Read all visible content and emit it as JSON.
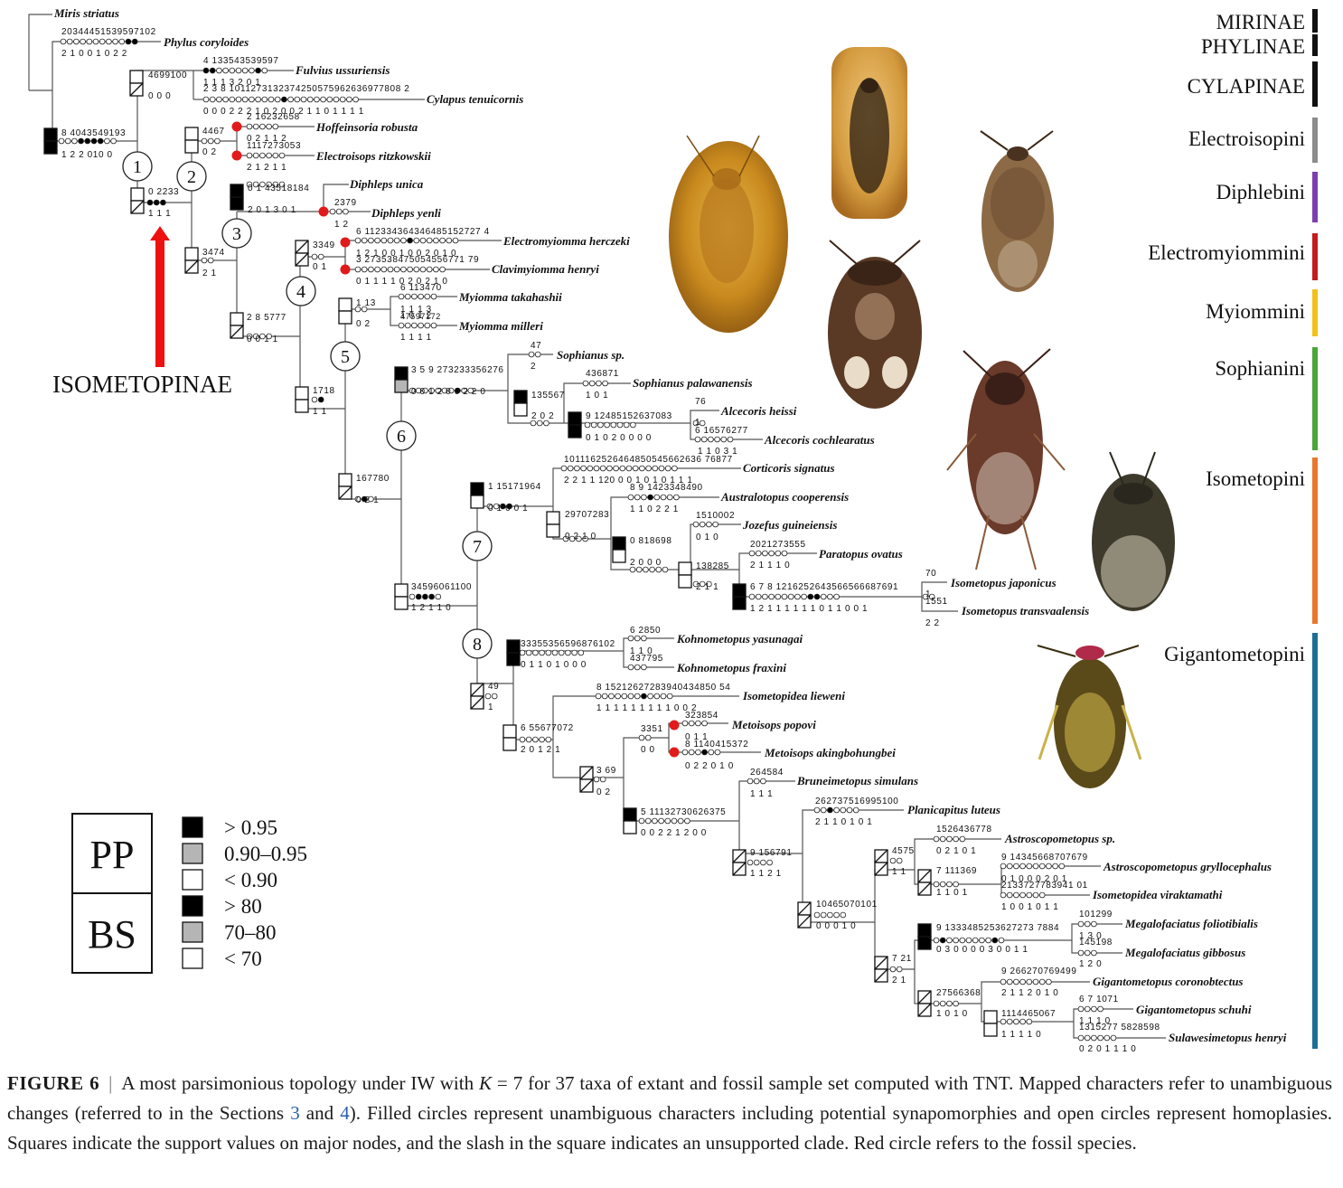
{
  "subfamilies": [
    {
      "label": "MIRINAE",
      "color": "#111111"
    },
    {
      "label": "PHYLINAE",
      "color": "#111111"
    },
    {
      "label": "CYLAPINAE",
      "color": "#111111"
    }
  ],
  "tribes": [
    {
      "label": "Electroisopini",
      "color": "#8c8c8c"
    },
    {
      "label": "Diphlebini",
      "color": "#7b3fb0"
    },
    {
      "label": "Electromyiommini",
      "color": "#c21d1d"
    },
    {
      "label": "Myiommini",
      "color": "#f2c11b"
    },
    {
      "label": "Sophianini",
      "color": "#4aa53b"
    },
    {
      "label": "Isometopini",
      "color": "#e8782e"
    },
    {
      "label": "Gigantometopini",
      "color": "#1e6f96"
    }
  ],
  "isometopinae_label": "ISOMETOPINAE",
  "taxa": [
    "Miris striatus",
    "Phylus coryloides",
    "Fulvius ussuriensis",
    "Cylapus tenuicornis",
    "Hoffeinsoria robusta",
    "Electroisops ritzkowskii",
    "Diphleps unica",
    "Diphleps yenli",
    "Electromyiomma herczeki",
    "Clavimyiomma henryi",
    "Myiomma takahashii",
    "Myiomma milleri",
    "Sophianus sp.",
    "Sophianus palawanensis",
    "Alcecoris heissi",
    "Alcecoris cochlearatus",
    "Corticoris signatus",
    "Australotopus cooperensis",
    "Jozefus guineiensis",
    "Paratopus ovatus",
    "Isometopus japonicus",
    "Isometopus transvaalensis",
    "Kohnometopus yasunagai",
    "Kohnometopus fraxini",
    "Isometopidea lieweni",
    "Metoisops popovi",
    "Metoisops akingbohungbei",
    "Bruneimetopus simulans",
    "Planicapitus luteus",
    "Astroscopometopus sp.",
    "Astroscopometopus gryllocephalus",
    "Isometopidea viraktamathi",
    "Megalofaciatus foliotibialis",
    "Megalofaciatus gibbosus",
    "Gigantometopus coronobtectus",
    "Gigantometopus schuhi",
    "Sulawesimetopus henryi"
  ],
  "node_numbers": [
    "1",
    "2",
    "3",
    "4",
    "5",
    "6",
    "7",
    "8"
  ],
  "char_labels": [
    "20344451539597102",
    "2 1 0 0 1 0 2 2",
    "4 133543539597",
    "1 1 1 3 2 0 1",
    "2 3 8 1011273132374250575962636977808 2",
    "0 0 0 2 2 2 1 0 2 0 0 2 1 1 0 1 1 1 1",
    "4699100",
    "0 0 0",
    "2 16232658",
    "0 2 1 1 2",
    "1117273053",
    "2 1 2 1 1",
    "4467",
    "0 2",
    "8 4043549193",
    "1 2 2 010 0",
    "0 2233",
    "1 1 1",
    "0 1 43518184",
    "2 0 1 3 0 1",
    "2379",
    "1 2",
    "6 112334364346485152727 4",
    "1 2 1 0 0 1 0 0 2 0 1 0",
    "3 273538475054556771 79",
    "0 1 1 1 1 0 2 0 2 1 0",
    "3349",
    "0 1",
    "3474",
    "2 1",
    "6 113470",
    "1 1 1 3",
    "1 0 1 2",
    "47597172",
    "1 1 1 1",
    "1 13",
    "0 2",
    "2 8 5777",
    "0 0 1 1",
    "1718",
    "1 1",
    "47",
    "2",
    "3 5 9 273233356276",
    "0 0 1 2 0 0 2 2 0",
    "436871",
    "1 0 1",
    "135567",
    "2 0 2",
    "76",
    "1",
    "6 16576277",
    "1 1 0 3 1",
    "9 12485152637083",
    "0 1 0 2 0 0 0 0",
    "1011162526464850545662636 76877",
    "2 2 1 1 120 0 0 1 0 1 0 1 1 1",
    "8 9 1423348490",
    "1 1 0 2 2 1",
    "1510002",
    "0 1 0",
    "1 15171964",
    "0 1 0 0 1",
    "29707283",
    "0 2 1 0",
    "2021273555",
    "2 1 1 1 0",
    "0 818698",
    "2 0 0 0",
    "138285",
    "2 1 1",
    "70",
    "1",
    "1551",
    "2 2",
    "6 7 8 1216252643566566687691",
    "1 2 1 1 1 1 1 1 0 1 1 0 0 1",
    "167780",
    "0 2 1",
    "34596061100",
    "1 2 1 1 0",
    "6 2850",
    "1 1 0",
    "437795",
    "33355356596876102",
    "0 1 1 0 1 0 0 0",
    "49",
    "1",
    "8 15212627283940434850 54",
    "1 1 1 1 1 1 1 1 1 0 0 2",
    "323854",
    "0 1 1",
    "8 1140415372",
    "0 2 2 0 1 0",
    "3351",
    "0 0",
    "6 55677072",
    "2 0 1 2 1",
    "3 69",
    "0 2",
    "264584",
    "1 1 1",
    "5 11132730626375",
    "0 0 2 2 1 2 0 0",
    "262737516995100",
    "2 1 1 0 1 0 1",
    "1526436778",
    "0 2 1 0 1",
    "9 14345668707679",
    "0 1 0 0 0 2 0 1",
    "2133727783941 01",
    "1 0 0 1 0 1 1",
    "7 111369",
    "1 1 0 1",
    "4575",
    "1 1",
    "9 156791",
    "1 1 2 1",
    "10465070101",
    "0 0 0 1 0",
    "101299",
    "1 3 0",
    "145198",
    "1 2 0",
    "9 1333485253627273 7884",
    "0 3 0 0 0 0 3 0 0 1 1",
    "9 266270769499",
    "2 1 1 2 0 1 0",
    "6 7 1071",
    "1 1 1 0",
    "1315277 5828598",
    "0 2 0 1 1 1 0",
    "27566368",
    "1 0 1 0",
    "1114465067",
    "1 1 1 1 0",
    "7 21",
    "2 1"
  ],
  "legend": {
    "pp_label": "PP",
    "bs_label": "BS",
    "pp_items": [
      {
        "label": "> 0.95",
        "color": "#000000"
      },
      {
        "label": "0.90–0.95",
        "color": "#b5b5b5"
      },
      {
        "label": "< 0.90",
        "color": "#ffffff"
      }
    ],
    "bs_items": [
      {
        "label": "> 80",
        "color": "#000000"
      },
      {
        "label": "70–80",
        "color": "#b5b5b5"
      },
      {
        "label": "< 70",
        "color": "#ffffff"
      }
    ]
  },
  "marker_colors": {
    "fossil": "#e11b1b",
    "arrow": "#ee1111"
  },
  "caption": {
    "fig": "FIGURE 6",
    "sep": "|",
    "part1": "A most parsimonious topology under IW with ",
    "kvar": "K",
    "part2": " = 7 for 37 taxa of extant and fossil sample set computed with TNT. Mapped characters refer to unambiguous changes (referred to in the Sections ",
    "ref1": "3",
    "part3": " and ",
    "ref2": "4",
    "part4": "). Filled circles represent unambiguous characters including potential synapomorphies and open circles represent homoplasies. Squares indicate the support values on major nodes, and the slash in the square indicates an unsupported clade. Red circle refers to the fossil species."
  }
}
